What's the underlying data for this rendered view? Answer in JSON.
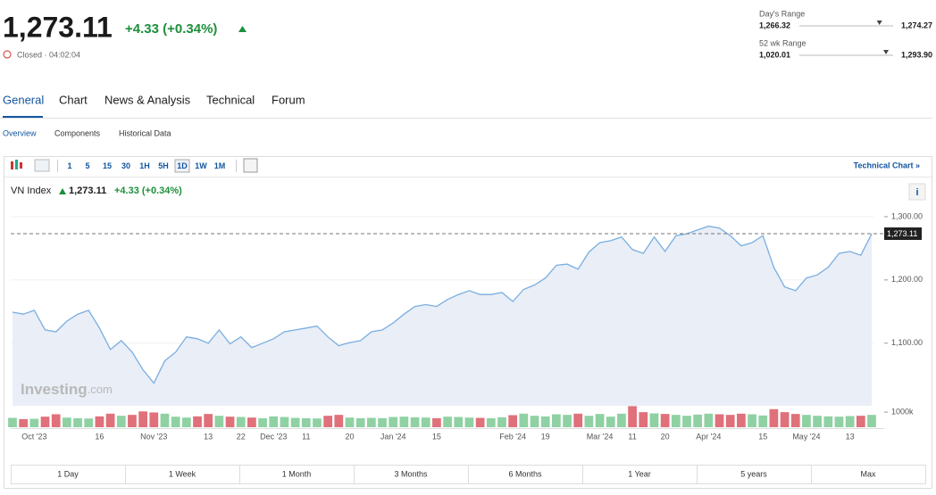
{
  "header": {
    "price": {
      "value": 1273.11,
      "label": "1,273.11"
    },
    "change": "+4.33 (+0.34%)",
    "status": "Closed · 04:02:04",
    "days_range": {
      "title": "Day's Range",
      "low": {
        "value": 1266.32,
        "label": "1,266.32"
      },
      "high": {
        "value": 1274.27,
        "label": "1,274.27"
      }
    },
    "week52_range": {
      "title": "52 wk Range",
      "low": {
        "value": 1020.01,
        "label": "1,020.01"
      },
      "high": {
        "value": 1293.9,
        "label": "1,293.90"
      }
    }
  },
  "tabs": [
    "General",
    "Chart",
    "News & Analysis",
    "Technical",
    "Forum"
  ],
  "subtabs": [
    "Overview",
    "Components",
    "Historical Data"
  ],
  "intervals": [
    "1",
    "5",
    "15",
    "30",
    "1H",
    "5H",
    "1D",
    "1W",
    "1M"
  ],
  "technical_link": "Technical Chart »",
  "legend": {
    "name": "VN Index",
    "price": "1,273.11",
    "change": "+4.33 (+0.34%)"
  },
  "watermark": {
    "brand": "Investing",
    "suffix": ".com"
  },
  "ranges": [
    "1 Day",
    "1 Week",
    "1 Month",
    "3 Months",
    "6 Months",
    "1 Year",
    "5 years",
    "Max"
  ],
  "chart_data": {
    "type": "area",
    "name": "VN Index",
    "color": "#7aaee0",
    "fill": "#e9eef7",
    "categories": [
      null,
      null,
      "Oct '23",
      null,
      null,
      null,
      null,
      null,
      "16",
      null,
      null,
      null,
      null,
      "Nov '23",
      null,
      null,
      null,
      null,
      "13",
      null,
      null,
      "22",
      null,
      null,
      "Dec '23",
      null,
      null,
      "11",
      null,
      null,
      null,
      "20",
      null,
      null,
      null,
      "Jan '24",
      null,
      null,
      null,
      "15",
      null,
      null,
      null,
      null,
      null,
      null,
      "Feb '24",
      null,
      null,
      "19",
      null,
      null,
      null,
      null,
      "Mar '24",
      null,
      null,
      "11",
      null,
      null,
      "20",
      null,
      null,
      null,
      "Apr '24",
      null,
      null,
      null,
      null,
      "15",
      null,
      null,
      null,
      "May '24",
      null,
      null,
      null,
      "13",
      null,
      null
    ],
    "values": [
      1149,
      1146,
      1152,
      1121,
      1118,
      1135,
      1146,
      1152,
      1124,
      1090,
      1104,
      1086,
      1058,
      1037,
      1072,
      1086,
      1110,
      1107,
      1100,
      1121,
      1099,
      1110,
      1093,
      1100,
      1107,
      1118,
      1121,
      1124,
      1127,
      1110,
      1096,
      1101,
      1104,
      1118,
      1121,
      1132,
      1146,
      1158,
      1161,
      1158,
      1169,
      1177,
      1183,
      1177,
      1177,
      1180,
      1166,
      1185,
      1192,
      1203,
      1223,
      1225,
      1217,
      1244,
      1259,
      1262,
      1268,
      1248,
      1242,
      1268,
      1245,
      1270,
      1273,
      1279,
      1285,
      1282,
      1270,
      1254,
      1259,
      1270,
      1220,
      1189,
      1183,
      1203,
      1208,
      1220,
      1242,
      1245,
      1239,
      1273
    ],
    "ylim": [
      1001,
      1314
    ],
    "yticks": [
      {
        "value": 1100,
        "label": "1,100.00"
      },
      {
        "value": 1200,
        "label": "1,200.00"
      },
      {
        "value": 1300,
        "label": "1,300.00"
      }
    ],
    "last_value": {
      "value": 1273.11,
      "label": "1,273.11"
    },
    "volume": {
      "up_color": "#8fd1a3",
      "down_color": "#e0707a",
      "ylim": [
        0,
        1600000
      ],
      "yticks": [
        {
          "value": 1000000,
          "label": "1000k"
        }
      ],
      "values": [
        620000,
        540000,
        560000,
        700000,
        860000,
        640000,
        600000,
        580000,
        720000,
        900000,
        760000,
        820000,
        1050000,
        980000,
        900000,
        700000,
        640000,
        720000,
        880000,
        760000,
        700000,
        680000,
        640000,
        600000,
        720000,
        680000,
        620000,
        600000,
        580000,
        760000,
        820000,
        640000,
        600000,
        620000,
        600000,
        680000,
        700000,
        660000,
        640000,
        600000,
        700000,
        680000,
        640000,
        620000,
        600000,
        660000,
        800000,
        900000,
        760000,
        720000,
        860000,
        820000,
        900000,
        760000,
        880000,
        700000,
        900000,
        1400000,
        1000000,
        920000,
        880000,
        820000,
        760000,
        840000,
        900000,
        860000,
        820000,
        900000,
        860000,
        780000,
        1200000,
        1000000,
        880000,
        820000,
        760000,
        720000,
        700000,
        740000,
        760000,
        820000
      ]
    }
  }
}
